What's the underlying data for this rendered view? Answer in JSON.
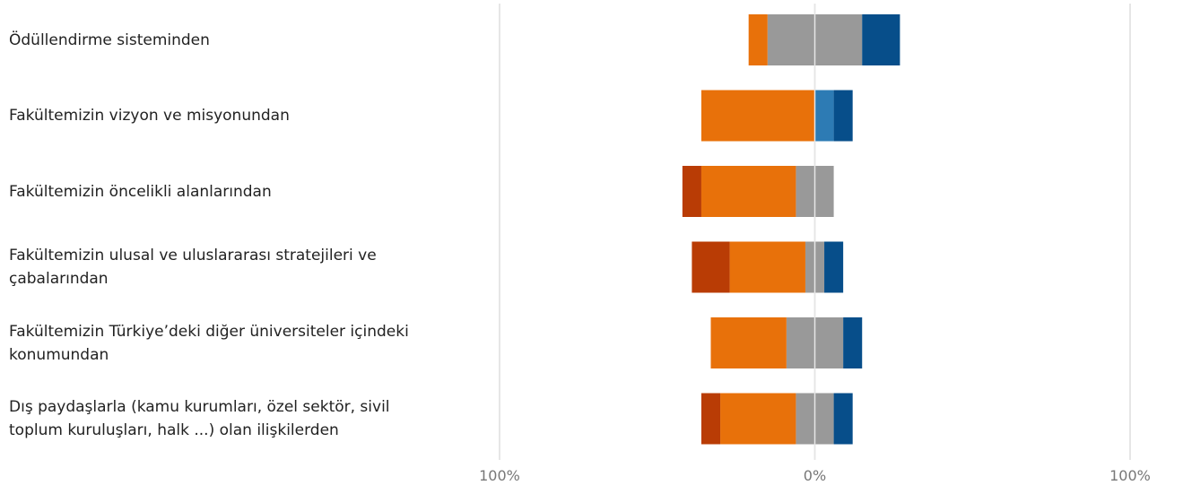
{
  "chart_data": {
    "type": "bar",
    "subtype": "diverging-stacked",
    "title": "",
    "xlabel": "",
    "ylabel": "",
    "xlim": [
      -100,
      100
    ],
    "x_tick_labels": [
      "100%",
      "0%",
      "100%"
    ],
    "legend": "none",
    "grid": true,
    "categories": [
      "Ödüllendirme sisteminden",
      "Fakültemizin vizyon ve misyonundan",
      "Fakültemizin öncelikli alanlarından",
      "Fakültemizin ulusal ve uluslararası stratejileri ve çabalarından",
      "Fakültemizin Türkiye’deki diğer üniversiteler içindeki konumundan",
      "Dış paydaşlarla (kamu kurumları, özel sektör, sivil toplum kuruluşları, halk ...) olan ilişkilerden"
    ],
    "label_lines": [
      [
        "Ödüllendirme sisteminden"
      ],
      [
        "Fakültemizin vizyon ve misyonundan"
      ],
      [
        "Fakültemizin öncelikli alanlarından"
      ],
      [
        "Fakültemizin ulusal ve uluslararası stratejileri ve",
        "çabalarından"
      ],
      [
        "Fakültemizin Türkiye’deki diğer üniversiteler içindeki",
        "konumundan"
      ],
      [
        "Dış paydaşlarla (kamu kurumları, özel sektör, sivil",
        "toplum kuruluşları, halk ...) olan ilişkilerden"
      ]
    ],
    "series": [
      {
        "color": "#b93c05",
        "side": "negative",
        "values": [
          0,
          0,
          6,
          12,
          0,
          6
        ]
      },
      {
        "color": "#e8710a",
        "side": "negative",
        "values": [
          6,
          36,
          30,
          24,
          24,
          24
        ]
      },
      {
        "color": "#999999",
        "side": "neutral",
        "values": [
          30,
          0,
          12,
          6,
          18,
          12
        ]
      },
      {
        "color": "#2d7bb4",
        "side": "positive",
        "values": [
          0,
          6,
          0,
          0,
          0,
          0
        ]
      },
      {
        "color": "#074e8a",
        "side": "positive",
        "values": [
          12,
          6,
          0,
          6,
          6,
          6
        ]
      }
    ]
  }
}
